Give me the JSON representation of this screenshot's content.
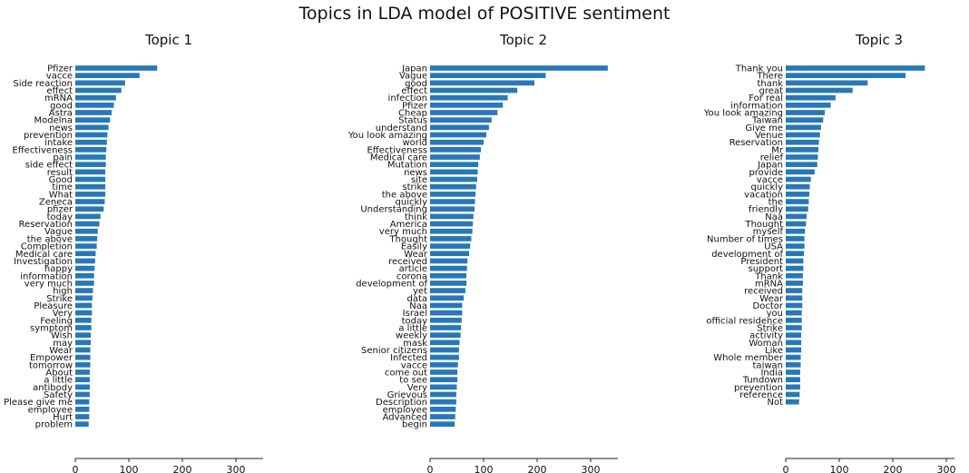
{
  "suptitle": "Topics in LDA model of POSITIVE sentiment",
  "chart_data": [
    {
      "type": "bar",
      "orientation": "horizontal",
      "title": "Topic 1",
      "color": "#2878b5",
      "xlim": [
        0,
        350
      ],
      "xticks": [
        0,
        100,
        200,
        300
      ],
      "categories": [
        "Pfizer",
        "vacce",
        "Side reaction",
        "effect",
        "mRNA",
        "good",
        "Astra",
        "Modelna",
        "news",
        "prevention",
        "intake",
        "Effectiveness",
        "pain",
        "side effect",
        "result",
        "Good",
        "time",
        "What",
        "Zeneca",
        "pfizer",
        "today",
        "Reservation",
        "Vague",
        "the above",
        "Completion",
        "Medical care",
        "Investigation",
        "happy",
        "information",
        "very much",
        "high",
        "Strike",
        "Pleasure",
        "Very",
        "Feeling",
        "symptom",
        "Wish",
        "may",
        "Wear",
        "Empower",
        "tomorrow",
        "About",
        "a little",
        "antibody",
        "Safety",
        "Please give me",
        "employee",
        "Hurt",
        "problem"
      ],
      "values": [
        153,
        120,
        93,
        86,
        76,
        72,
        68,
        65,
        62,
        60,
        59,
        58,
        57,
        57,
        56,
        56,
        56,
        56,
        55,
        53,
        47,
        45,
        42,
        41,
        40,
        38,
        37,
        36,
        35,
        35,
        33,
        32,
        31,
        31,
        30,
        30,
        29,
        29,
        28,
        28,
        28,
        27,
        27,
        27,
        27,
        26,
        26,
        26,
        25
      ]
    },
    {
      "type": "bar",
      "orientation": "horizontal",
      "title": "Topic 2",
      "color": "#2878b5",
      "xlim": [
        0,
        350
      ],
      "xticks": [
        0,
        100,
        200,
        300
      ],
      "categories": [
        "Japan",
        "Vague",
        "good",
        "effect",
        "infection",
        "Pfizer",
        "Cheap",
        "Status",
        "understand",
        "You look amazing",
        "world",
        "Effectiveness",
        "Medical care",
        "Mutation",
        "news",
        "site",
        "strike",
        "the above",
        "quickly",
        "Understanding",
        "think",
        "America",
        "very much",
        "Thought",
        "Easily",
        "Wear",
        "received",
        "article",
        "corona",
        "development of",
        "yet",
        "data",
        "Naa",
        "Israel",
        "today",
        "a little",
        "weekly",
        "mask",
        "Senior citizens",
        "Infected",
        "vacce",
        "come out",
        "to see",
        "Very",
        "Grievous",
        "Description",
        "employee",
        "Advanced",
        "begin"
      ],
      "values": [
        332,
        216,
        195,
        163,
        145,
        136,
        126,
        115,
        110,
        105,
        100,
        95,
        93,
        90,
        89,
        88,
        86,
        85,
        84,
        83,
        81,
        80,
        79,
        77,
        75,
        73,
        70,
        69,
        68,
        68,
        66,
        63,
        60,
        60,
        59,
        58,
        57,
        55,
        54,
        54,
        52,
        51,
        51,
        50,
        49,
        49,
        48,
        47,
        46
      ]
    },
    {
      "type": "bar",
      "orientation": "horizontal",
      "title": "Topic 3",
      "color": "#2878b5",
      "xlim": [
        0,
        350
      ],
      "xticks": [
        0,
        100,
        200,
        300
      ],
      "categories": [
        "Thank you",
        "There",
        "thank",
        "great",
        "For real",
        "information",
        "You look amazing",
        "Taiwan",
        "Give me",
        "Venue",
        "Reservation",
        "Mr",
        "relief",
        "Japan",
        "provide",
        "vacce",
        "quickly",
        "vacation",
        "the",
        "friendly",
        "Naa",
        "Thought",
        "myself",
        "Number of times",
        "USA",
        "development of",
        "President",
        "support",
        "Thank",
        "mRNA",
        "received",
        "Wear",
        "Doctor",
        "you",
        "official residence",
        "Strike",
        "activity",
        "Woman",
        "Like",
        "Whole member",
        "taiwan",
        "India",
        "Tundown",
        "prevention",
        "reference",
        "Not"
      ],
      "values": [
        260,
        224,
        153,
        125,
        93,
        84,
        73,
        70,
        66,
        64,
        62,
        61,
        60,
        59,
        54,
        47,
        45,
        44,
        43,
        42,
        39,
        38,
        36,
        35,
        35,
        34,
        33,
        33,
        32,
        32,
        31,
        31,
        31,
        30,
        30,
        30,
        29,
        29,
        29,
        28,
        28,
        27,
        27,
        27,
        26,
        25
      ]
    }
  ]
}
